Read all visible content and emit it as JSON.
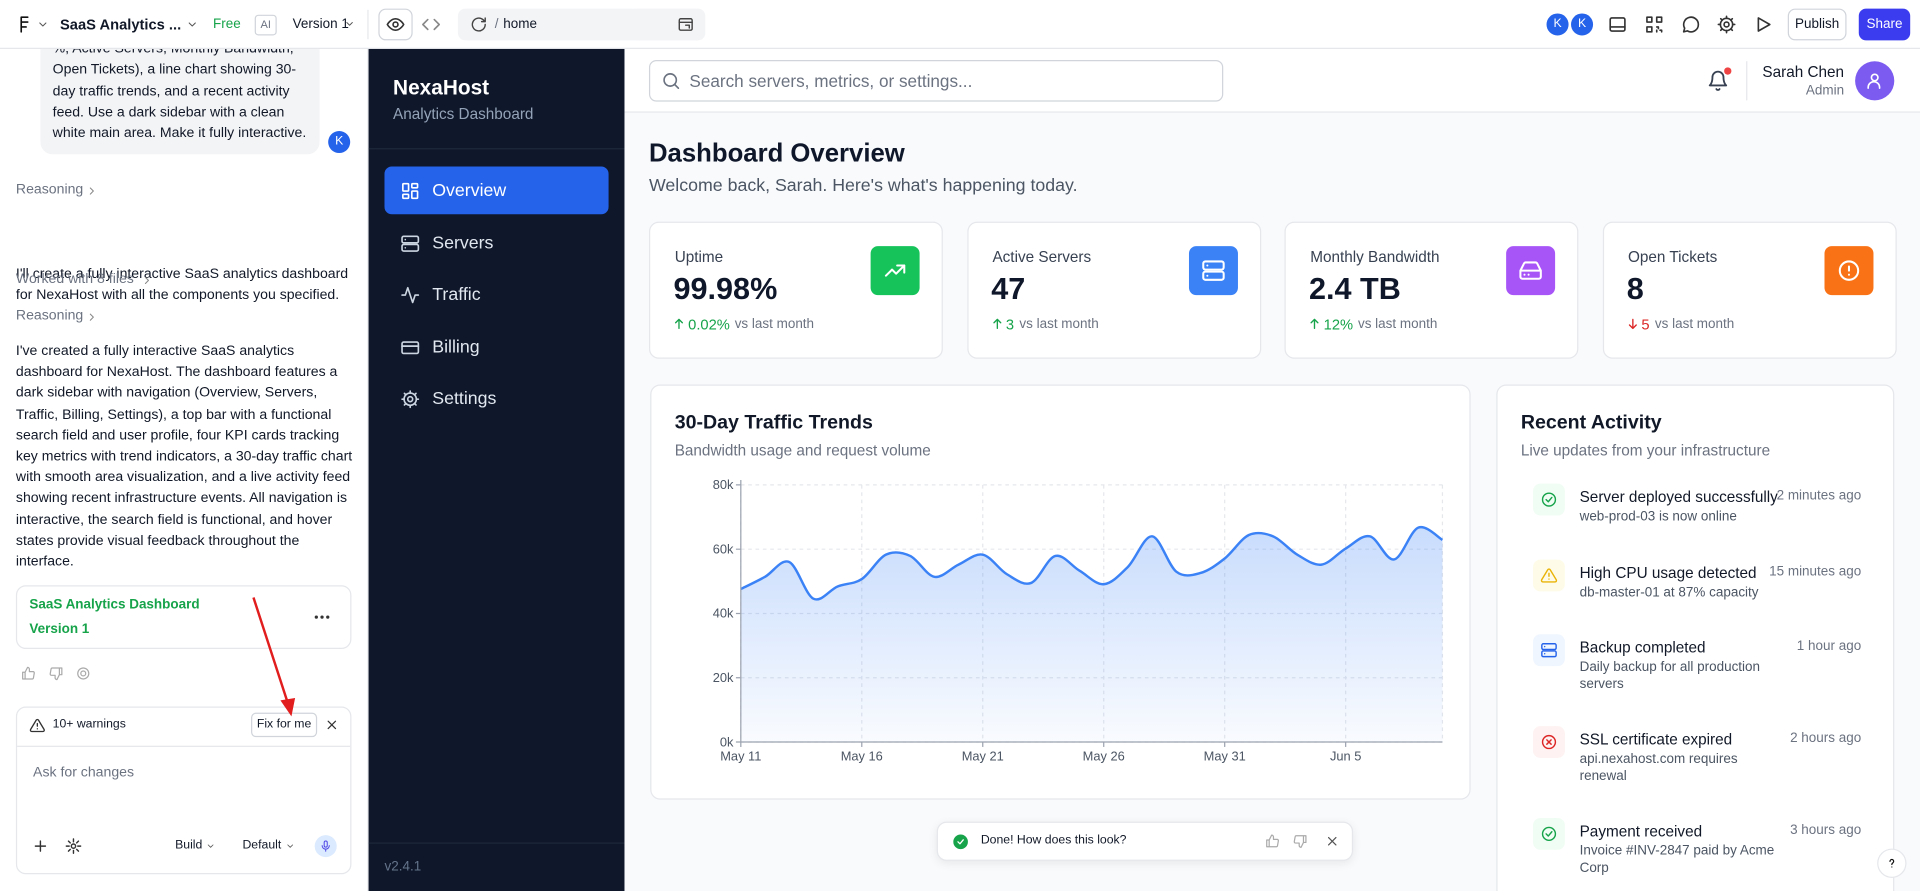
{
  "topbar": {
    "project": "SaaS Analytics ...",
    "plan": "Free",
    "ai": "AI",
    "version": "Version 1",
    "path_sep": "/",
    "path": "home",
    "avatars": [
      "K",
      "K"
    ],
    "publish": "Publish",
    "share": "Share"
  },
  "chat": {
    "user_message": "%, Active Servers, Monthly Bandwidth, Open Tickets), a line chart showing 30-day traffic trends, and a recent activity feed. Use a dark sidebar with a clean white main area. Make it fully interactive.",
    "user_avatar": "K",
    "reasoning_1": "Reasoning",
    "reply_1": "I'll create a fully interactive SaaS analytics dashboard for NexaHost with all the components you specified.",
    "worked": "Worked with 8 files",
    "reasoning_2": "Reasoning",
    "reply_2": "I've created a fully interactive SaaS analytics dashboard for NexaHost. The dashboard features a dark sidebar with navigation (Overview, Servers, Traffic, Billing, Settings), a top bar with a functional search field and user profile, four KPI cards tracking key metrics with trend indicators, a 30-day traffic chart with smooth area visualization, and a live activity feed showing recent infrastructure events. All navigation is interactive, the search field is functional, and hover states provide visual feedback throughout the interface.",
    "artifact_title": "SaaS Analytics Dashboard",
    "artifact_version": "Version 1",
    "warnings": "10+ warnings",
    "fix": "Fix for me",
    "placeholder": "Ask for changes",
    "build": "Build",
    "mode": "Default"
  },
  "sidebar": {
    "brand": "NexaHost",
    "subtitle": "Analytics Dashboard",
    "nav": [
      "Overview",
      "Servers",
      "Traffic",
      "Billing",
      "Settings"
    ],
    "version": "v2.4.1"
  },
  "header": {
    "search_placeholder": "Search servers, metrics, or settings...",
    "user_name": "Sarah Chen",
    "user_role": "Admin"
  },
  "page": {
    "title": "Dashboard Overview",
    "subtitle": "Welcome back, Sarah. Here's what's happening today."
  },
  "kpis": [
    {
      "label": "Uptime",
      "value": "99.98%",
      "change": "0.02%",
      "note": "vs last month",
      "trend": "up",
      "color": "#16c25a"
    },
    {
      "label": "Active Servers",
      "value": "47",
      "change": "3",
      "note": "vs last month",
      "trend": "up",
      "color": "#3b82f6"
    },
    {
      "label": "Monthly Bandwidth",
      "value": "2.4 TB",
      "change": "12%",
      "note": "vs last month",
      "trend": "up",
      "color": "#a855f7"
    },
    {
      "label": "Open Tickets",
      "value": "8",
      "change": "5",
      "note": "vs last month",
      "trend": "down",
      "color": "#f97316"
    }
  ],
  "chart_data": {
    "type": "line",
    "title": "30-Day Traffic Trends",
    "subtitle": "Bandwidth usage and request volume",
    "categories": [
      "May 11",
      null,
      null,
      null,
      null,
      "May 16",
      null,
      null,
      null,
      null,
      "May 21",
      null,
      null,
      null,
      null,
      "May 26",
      null,
      null,
      null,
      null,
      "May 31",
      null,
      null,
      null,
      null,
      "Jun 5",
      null,
      null,
      null,
      null
    ],
    "values": [
      47600,
      51400,
      56000,
      44600,
      48400,
      50700,
      58300,
      57900,
      51400,
      55200,
      58300,
      52200,
      49500,
      57900,
      53300,
      49100,
      54500,
      64000,
      53000,
      52600,
      57100,
      64400,
      64000,
      58300,
      55200,
      60200,
      64000,
      56800,
      66700,
      62900
    ],
    "color": "#3b82f6",
    "ylim": [
      0,
      80000
    ],
    "yticks": [
      {
        "value": 0,
        "label": "0k"
      },
      {
        "value": 20000,
        "label": "20k"
      },
      {
        "value": 40000,
        "label": "40k"
      },
      {
        "value": 60000,
        "label": "60k"
      },
      {
        "value": 80000,
        "label": "80k"
      }
    ],
    "grid": true
  },
  "activity": {
    "title": "Recent Activity",
    "subtitle": "Live updates from your infrastructure",
    "items": [
      {
        "title": "Server deployed successfully",
        "detail": "web-prod-03 is now online",
        "time": "2 minutes ago",
        "status": "success"
      },
      {
        "title": "High CPU usage detected",
        "detail": "db-master-01 at 87% capacity",
        "time": "15 minutes ago",
        "status": "warning"
      },
      {
        "title": "Backup completed",
        "detail": "Daily backup for all production servers",
        "time": "1 hour ago",
        "status": "info"
      },
      {
        "title": "SSL certificate expired",
        "detail": "api.nexahost.com requires renewal",
        "time": "2 hours ago",
        "status": "error"
      },
      {
        "title": "Payment received",
        "detail": "Invoice #INV-2847 paid by Acme Corp",
        "time": "3 hours ago",
        "status": "success"
      }
    ]
  },
  "toast": "Done! How does this look?"
}
